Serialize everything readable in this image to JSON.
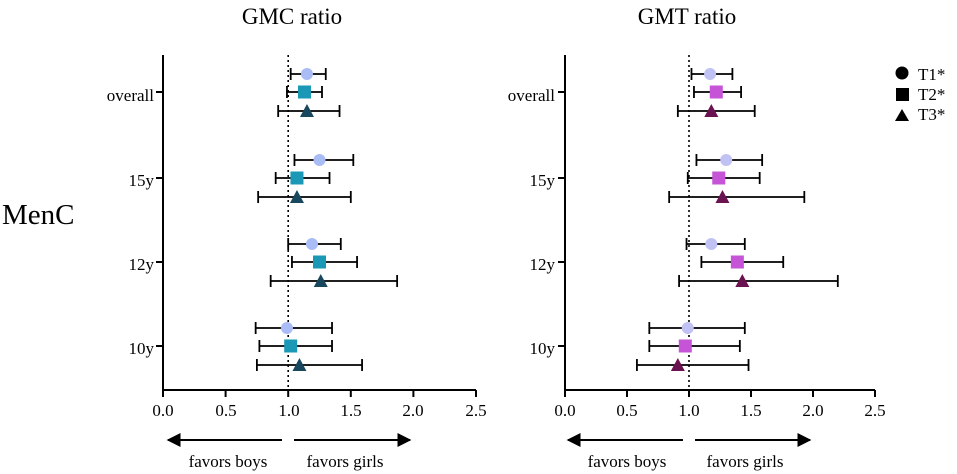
{
  "row_label": "MenC",
  "legend": [
    {
      "shape": "circle",
      "label": "T1*"
    },
    {
      "shape": "square",
      "label": "T2*"
    },
    {
      "shape": "triangle",
      "label": "T3*"
    }
  ],
  "chart_data": [
    {
      "type": "scatter",
      "subtype": "forest-plot",
      "title": "GMC ratio",
      "xlabel": "",
      "xlim": [
        0,
        2.5
      ],
      "xticks": [
        "0.0",
        "0.5",
        "1.0",
        "1.5",
        "2.0",
        "2.5"
      ],
      "reference_line": 1.0,
      "categories": [
        "overall",
        "15y",
        "12y",
        "10y"
      ],
      "arrow_left_label": "favors boys",
      "arrow_right_label": "favors girls",
      "series_colors": {
        "T1": "#aabcf5",
        "T2": "#1a98b5",
        "T3": "#19475d"
      },
      "series": [
        {
          "name": "T1",
          "shape": "circle",
          "values": [
            1.15,
            1.25,
            1.19,
            0.99
          ],
          "ci_low": [
            1.02,
            1.05,
            1.0,
            0.74
          ],
          "ci_high": [
            1.3,
            1.52,
            1.42,
            1.35
          ]
        },
        {
          "name": "T2",
          "shape": "square",
          "values": [
            1.13,
            1.07,
            1.25,
            1.02
          ],
          "ci_low": [
            0.99,
            0.9,
            1.03,
            0.77
          ],
          "ci_high": [
            1.27,
            1.33,
            1.55,
            1.35
          ]
        },
        {
          "name": "T3",
          "shape": "triangle",
          "values": [
            1.15,
            1.07,
            1.26,
            1.09
          ],
          "ci_low": [
            0.92,
            0.76,
            0.86,
            0.75
          ],
          "ci_high": [
            1.41,
            1.5,
            1.87,
            1.59
          ]
        }
      ]
    },
    {
      "type": "scatter",
      "subtype": "forest-plot",
      "title": "GMT ratio",
      "xlabel": "",
      "xlim": [
        0,
        2.5
      ],
      "xticks": [
        "0.0",
        "0.5",
        "1.0",
        "1.5",
        "2.0",
        "2.5"
      ],
      "reference_line": 1.0,
      "categories": [
        "overall",
        "15y",
        "12y",
        "10y"
      ],
      "arrow_left_label": "favors boys",
      "arrow_right_label": "favors girls",
      "series_colors": {
        "T1": "#c0c2f4",
        "T2": "#c554d6",
        "T3": "#6a1350"
      },
      "series": [
        {
          "name": "T1",
          "shape": "circle",
          "values": [
            1.17,
            1.3,
            1.18,
            0.99
          ],
          "ci_low": [
            1.02,
            1.06,
            0.98,
            0.68
          ],
          "ci_high": [
            1.35,
            1.59,
            1.45,
            1.45
          ]
        },
        {
          "name": "T2",
          "shape": "square",
          "values": [
            1.22,
            1.24,
            1.39,
            0.97
          ],
          "ci_low": [
            1.04,
            0.99,
            1.1,
            0.68
          ],
          "ci_high": [
            1.42,
            1.57,
            1.76,
            1.41
          ]
        },
        {
          "name": "T3",
          "shape": "triangle",
          "values": [
            1.18,
            1.27,
            1.43,
            0.91
          ],
          "ci_low": [
            0.91,
            0.84,
            0.92,
            0.58
          ],
          "ci_high": [
            1.53,
            1.93,
            2.2,
            1.48
          ]
        }
      ]
    }
  ]
}
